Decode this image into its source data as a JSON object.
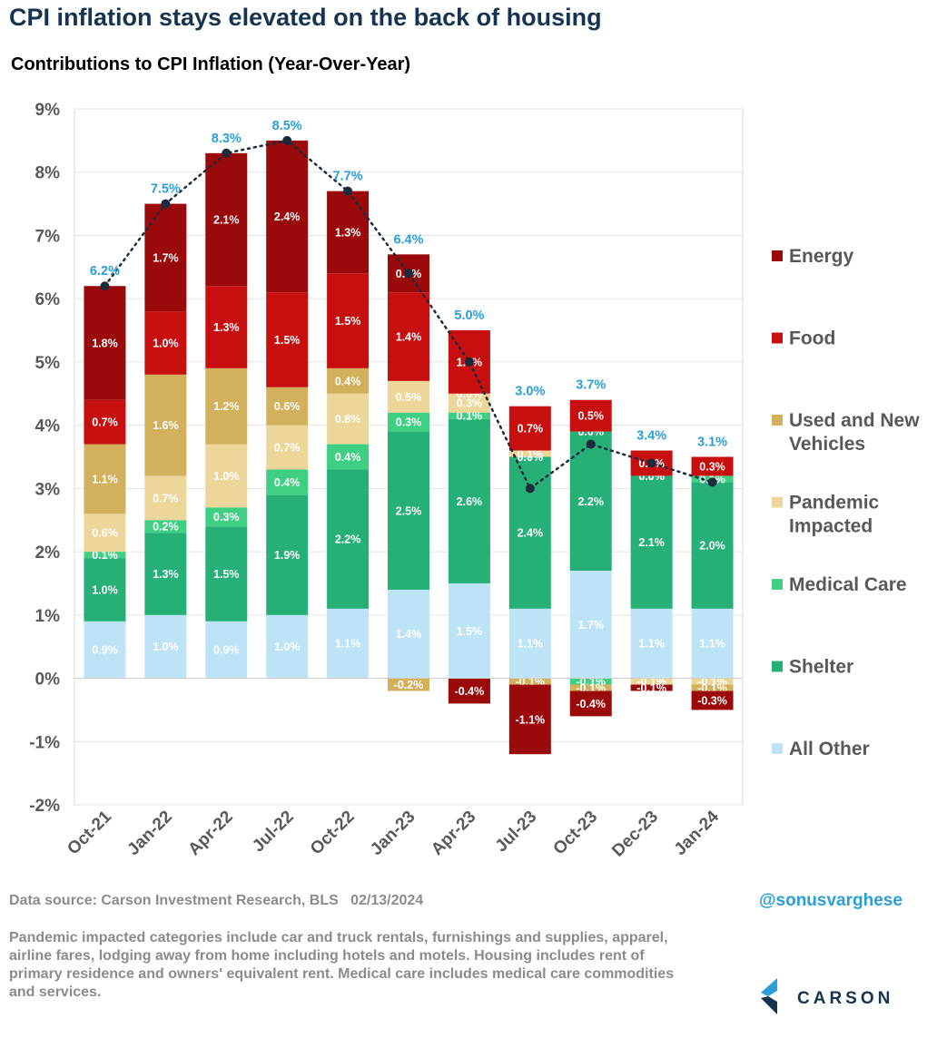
{
  "header": {
    "title": "CPI inflation stays elevated on the back of housing",
    "subtitle": "Contributions to CPI Inflation (Year-Over-Year)"
  },
  "chart_data": {
    "type": "bar",
    "stacked": true,
    "categories": [
      "Oct-21",
      "Jan-22",
      "Apr-22",
      "Jul-22",
      "Oct-22",
      "Jan-23",
      "Apr-23",
      "Jul-23",
      "Oct-23",
      "Dec-23",
      "Jan-24"
    ],
    "ylim": [
      -2,
      9
    ],
    "yticks": [
      -2,
      -1,
      0,
      1,
      2,
      3,
      4,
      5,
      6,
      7,
      8,
      9
    ],
    "ytick_labels": [
      "-2%",
      "-1%",
      "0%",
      "1%",
      "2%",
      "3%",
      "4%",
      "5%",
      "6%",
      "7%",
      "8%",
      "9%"
    ],
    "grid": true,
    "legend_position": "right",
    "series": [
      {
        "name": "All Other",
        "color": "#bde3f7",
        "values": [
          0.9,
          1.0,
          0.9,
          1.0,
          1.1,
          1.4,
          1.5,
          1.1,
          1.7,
          1.1,
          1.1
        ],
        "labels": [
          "0.9%",
          "1.0%",
          "0.9%",
          "1.0%",
          "1.1%",
          "1.4%",
          "1.5%",
          "1.1%",
          "1.7%",
          "1.1%",
          "1.1%"
        ]
      },
      {
        "name": "Shelter",
        "color": "#26af77",
        "values": [
          1.0,
          1.3,
          1.5,
          1.9,
          2.2,
          2.5,
          2.6,
          2.4,
          2.2,
          2.1,
          2.0
        ],
        "labels": [
          "1.0%",
          "1.3%",
          "1.5%",
          "1.9%",
          "2.2%",
          "2.5%",
          "2.6%",
          "2.4%",
          "2.2%",
          "2.1%",
          "2.0%"
        ]
      },
      {
        "name": "Medical Care",
        "color": "#3fcf83",
        "values": [
          0.1,
          0.2,
          0.3,
          0.4,
          0.4,
          0.3,
          0.1,
          0.0,
          -0.1,
          0.0,
          0.1
        ],
        "labels": [
          "0.1%",
          "0.2%",
          "0.3%",
          "0.4%",
          "0.4%",
          "0.3%",
          "0.1%",
          "0.0%",
          "-0.1%",
          "0.0%",
          "0.1%"
        ]
      },
      {
        "name": "Pandemic Impacted",
        "color": "#ecd69a",
        "values": [
          0.6,
          0.7,
          1.0,
          0.7,
          0.8,
          0.5,
          0.3,
          0.1,
          0.0,
          -0.1,
          -0.1
        ],
        "labels": [
          "0.6%",
          "0.7%",
          "1.0%",
          "0.7%",
          "0.8%",
          "0.5%",
          "0.3%",
          "0.1%",
          "0.0%",
          "-0.1%",
          "-0.1%"
        ]
      },
      {
        "name": "Used and New Vehicles",
        "color": "#d2b05c",
        "values": [
          1.1,
          1.6,
          1.2,
          0.6,
          0.4,
          -0.2,
          0.0,
          -0.1,
          -0.1,
          0.0,
          -0.1
        ],
        "labels": [
          "1.1%",
          "1.6%",
          "1.2%",
          "0.6%",
          "0.4%",
          "-0.2%",
          "0.0%",
          "-0.1%",
          "-0.1%",
          "0.0%",
          "-0.1%"
        ]
      },
      {
        "name": "Food",
        "color": "#c80f0f",
        "values": [
          0.7,
          1.0,
          1.3,
          1.5,
          1.5,
          1.4,
          1.0,
          0.7,
          0.5,
          0.4,
          0.3
        ],
        "labels": [
          "0.7%",
          "1.0%",
          "1.3%",
          "1.5%",
          "1.5%",
          "1.4%",
          "1.0%",
          "0.7%",
          "0.5%",
          "0.4%",
          "0.3%"
        ]
      },
      {
        "name": "Energy",
        "color": "#9b0a0a",
        "values": [
          1.8,
          1.7,
          2.1,
          2.4,
          1.3,
          0.6,
          -0.4,
          -1.1,
          -0.4,
          -0.1,
          -0.3
        ],
        "labels": [
          "1.8%",
          "1.7%",
          "2.1%",
          "2.4%",
          "1.3%",
          "0.6%",
          "-0.4%",
          "-1.1%",
          "-0.4%",
          "-0.1%",
          "-0.3%"
        ]
      }
    ],
    "total": {
      "values": [
        6.2,
        7.5,
        8.3,
        8.5,
        7.7,
        6.4,
        5.0,
        3.0,
        3.7,
        3.4,
        3.1
      ],
      "labels": [
        "6.2%",
        "7.5%",
        "8.3%",
        "8.5%",
        "7.7%",
        "6.4%",
        "5.0%",
        "3.0%",
        "3.7%",
        "3.4%",
        "3.1%"
      ],
      "label_color": "#2a9ed8",
      "line_color": "#1b2a3d"
    },
    "legend_order": [
      "Energy",
      "Food",
      "Used and New Vehicles",
      "Pandemic Impacted",
      "Medical Care",
      "Shelter",
      "All Other"
    ],
    "legend_lines": [
      [
        "Energy"
      ],
      [
        "Food"
      ],
      [
        "Used and New",
        "Vehicles"
      ],
      [
        "Pandemic",
        "Impacted"
      ],
      [
        "Medical Care"
      ],
      [
        "Shelter"
      ],
      [
        "All Other"
      ]
    ]
  },
  "footer": {
    "source": "Data source: Carson Investment Research, BLS   02/13/2024",
    "handle": "@sonusvarghese",
    "note": "Pandemic impacted categories include car and truck rentals, furnishings and supplies, apparel, airline fares, lodging away from home including hotels and motels. Housing includes rent of primary residence and owners' equivalent rent. Medical care includes medical care commodities and services.",
    "logo_text": "CARSON",
    "logo_colors": [
      "#2a9ed8",
      "#16334f"
    ]
  }
}
